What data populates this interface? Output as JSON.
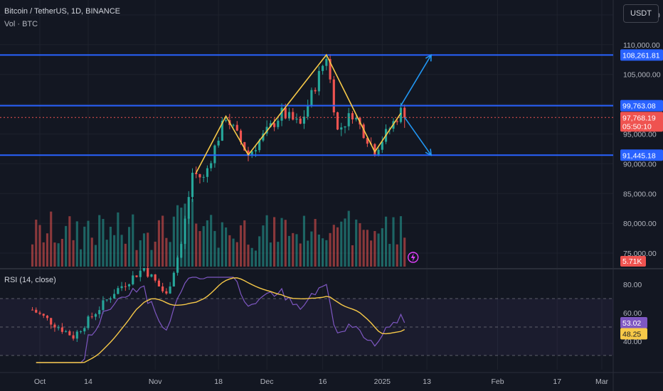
{
  "header": {
    "symbol_title": "Bitcoin / TetherUS, 1D, BINANCE",
    "volume_legend": "Vol · BTC",
    "currency_label": "USDT"
  },
  "rsi_pane": {
    "legend": "RSI (14, close)",
    "tick_labels": [
      "80.00",
      "60.00",
      "40.00"
    ],
    "value_label": "53.02",
    "ma_value_label": "48.25",
    "upper_band": 70,
    "middle_band": 50,
    "lower_band": 30,
    "colors": {
      "rsi_line": "#7e57c2",
      "rsi_ma": "#f7c948",
      "band_fill": "#7e57c2"
    }
  },
  "price_axis": {
    "tick_labels": [
      "115,000.00",
      "110,000.00",
      "105,000.00",
      "100,000.00",
      "95,000.00",
      "90,000.00",
      "85,000.00",
      "80,000.00",
      "75,000.00"
    ],
    "level_labels": {
      "resistance": "108,261.81",
      "middle": "99,763.08",
      "support": "91,445.18",
      "last_price": "97,768.19",
      "countdown": "05:50:10",
      "volume": "5.71K"
    }
  },
  "time_axis": {
    "labels": [
      "Oct",
      "14",
      "Nov",
      "18",
      "Dec",
      "16",
      "2025",
      "13",
      "Feb",
      "17",
      "Mar"
    ]
  },
  "colors": {
    "background": "#131722",
    "grid": "#1e222d",
    "up": "#26a69a",
    "down": "#ef5350",
    "level_line": "#2962ff",
    "pattern_line": "#f7c948",
    "arrow": "#2196f3",
    "label_text": "#ffffff"
  },
  "icons": [
    "lightning-icon"
  ],
  "chart_data": {
    "type": "candlestick",
    "symbol": "Bitcoin / TetherUS",
    "interval": "1D",
    "exchange": "BINANCE",
    "price_levels": {
      "resistance": 108261.81,
      "middle": 99763.08,
      "support": 91445.18
    },
    "last_price": 97768.19,
    "visible_volume": "5.71K",
    "y_ticks": [
      75000,
      80000,
      85000,
      90000,
      95000,
      100000,
      105000,
      110000,
      115000
    ],
    "ylim": [
      72500,
      117500
    ],
    "x_tick_labels": [
      "Oct",
      "14",
      "Nov",
      "18",
      "Dec",
      "16",
      "2025",
      "13",
      "Feb",
      "17",
      "Mar"
    ],
    "pattern_points": [
      {
        "date": "2024-11-12",
        "price": 88500
      },
      {
        "date": "2024-11-20",
        "price": 98000
      },
      {
        "date": "2024-11-26",
        "price": 91500
      },
      {
        "date": "2024-12-17",
        "price": 108300
      },
      {
        "date": "2024-12-30",
        "price": 92000
      },
      {
        "date": "2025-01-06",
        "price": 98500
      }
    ],
    "projections": [
      {
        "from": {
          "date": "2025-01-06",
          "price": 99763
        },
        "to": {
          "date": "2025-01-13",
          "price": 108261
        }
      },
      {
        "from": {
          "date": "2025-01-07",
          "price": 97800
        },
        "to": {
          "date": "2025-01-13",
          "price": 91445
        }
      }
    ],
    "rsi": {
      "length": 14,
      "source": "close",
      "value": 53.02,
      "ma_value": 48.25,
      "ylim": [
        20,
        90
      ],
      "bands": [
        30,
        50,
        70
      ]
    }
  }
}
